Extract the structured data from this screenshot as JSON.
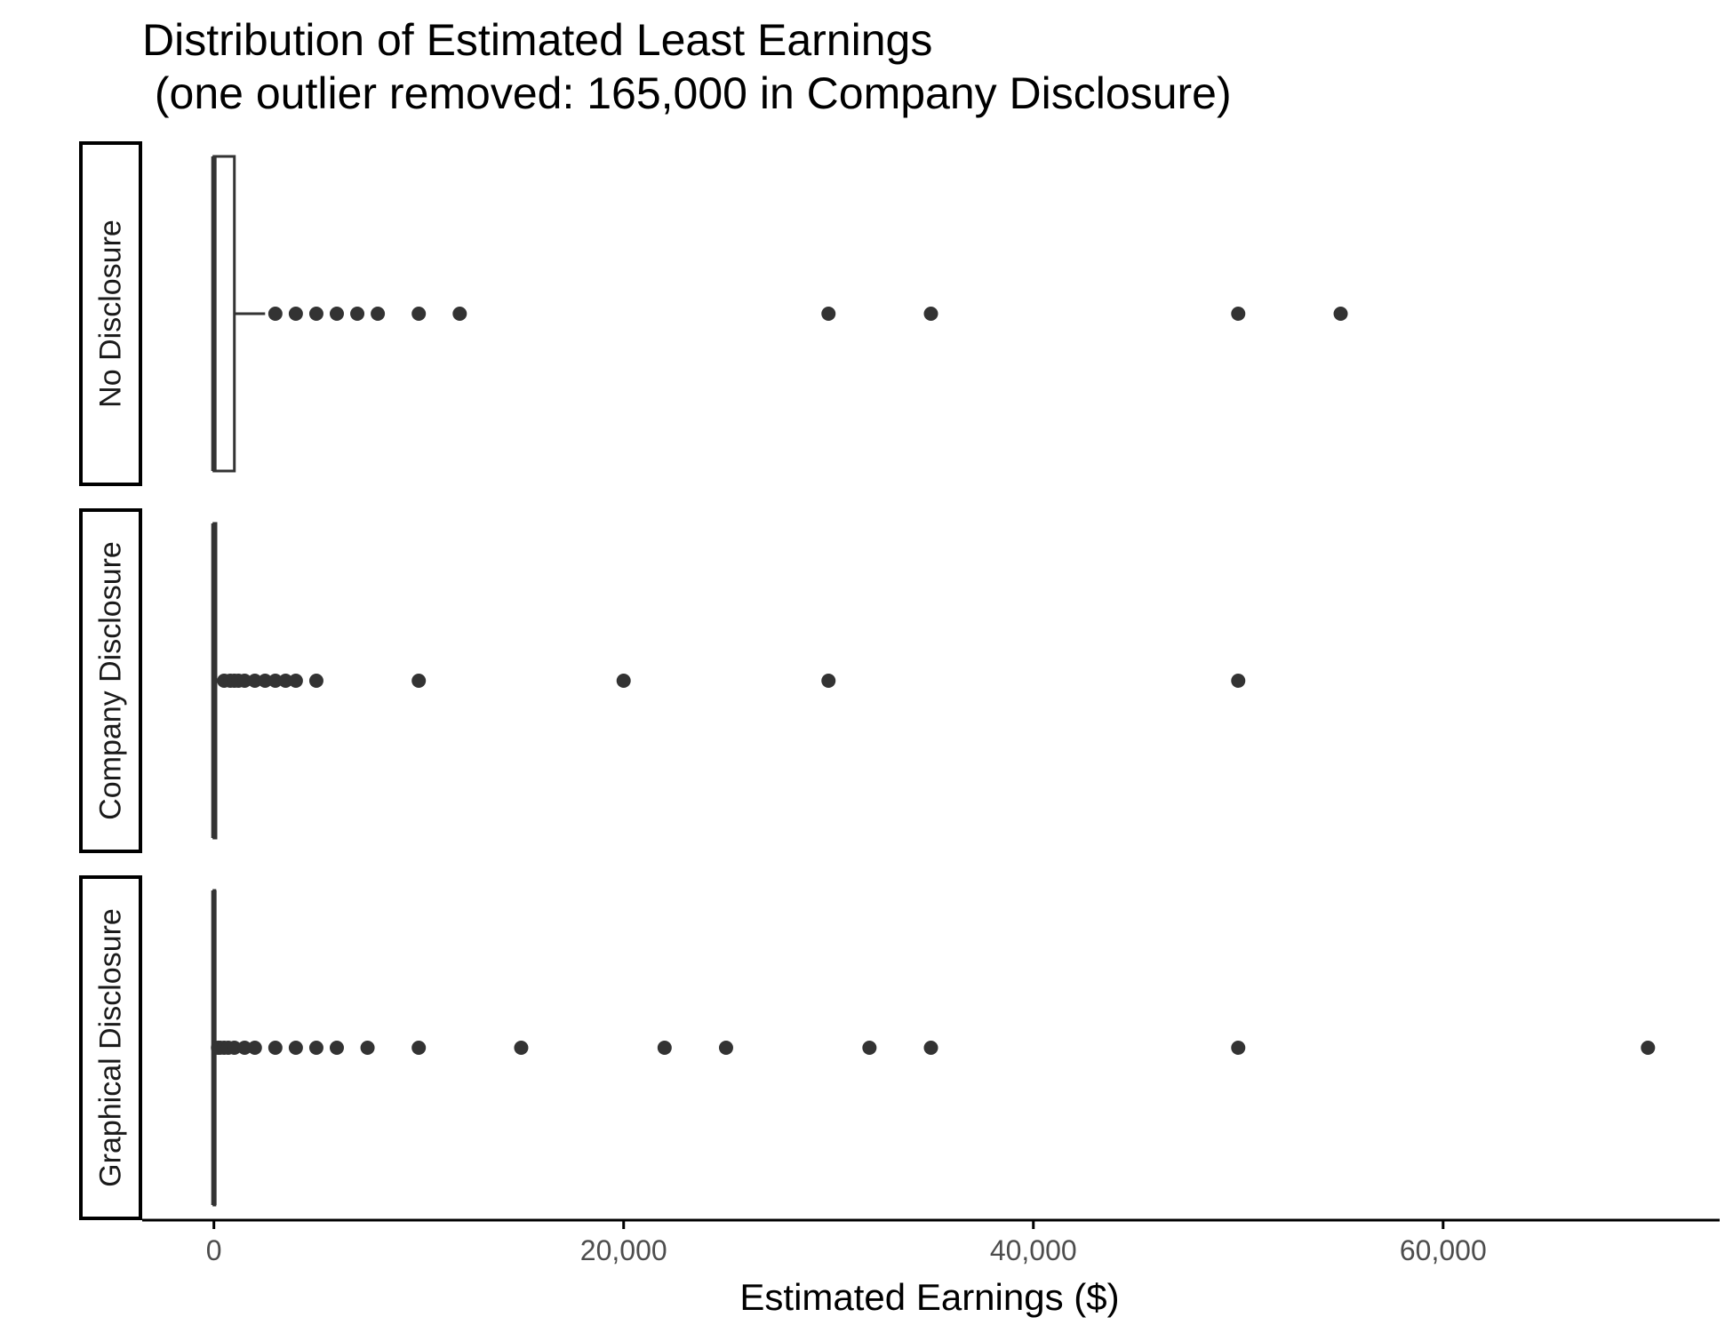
{
  "chart_data": {
    "type": "boxplot",
    "title": "Distribution of Estimated Least Earnings",
    "subtitle": " (one outlier removed: 165,000 in Company Disclosure)",
    "xlabel": "Estimated Earnings ($)",
    "ylabel": "",
    "xlim": [
      -3500,
      73500
    ],
    "x_ticks": [
      0,
      20000,
      40000,
      60000
    ],
    "x_tick_labels": [
      "0",
      "20,000",
      "40,000",
      "60,000"
    ],
    "grid": false,
    "legend": "none",
    "colors": {
      "box_fill": "#ffffff",
      "box_line": "#333333",
      "points": "#333333",
      "axis": "#000000",
      "strip_border": "#000000"
    },
    "panels": [
      {
        "label": "No Disclosure",
        "box": {
          "min": 0,
          "q1": 0,
          "median": 0,
          "q3": 1000,
          "whisker_high": 2500
        },
        "outliers": [
          3000,
          4000,
          5000,
          6000,
          7000,
          8000,
          10000,
          12000,
          30000,
          35000,
          50000,
          55000
        ]
      },
      {
        "label": "Company Disclosure",
        "box": {
          "min": 0,
          "q1": 0,
          "median": 0,
          "q3": 100,
          "whisker_high": 200
        },
        "outliers": [
          500,
          800,
          1000,
          1200,
          1500,
          2000,
          2500,
          3000,
          3500,
          4000,
          5000,
          10000,
          20000,
          30000,
          50000
        ]
      },
      {
        "label": "Graphical Disclosure",
        "box": {
          "min": 0,
          "q1": 0,
          "median": 0,
          "q3": 50,
          "whisker_high": 100
        },
        "outliers": [
          200,
          300,
          500,
          700,
          1000,
          1500,
          2000,
          3000,
          4000,
          5000,
          6000,
          7500,
          10000,
          15000,
          22000,
          25000,
          32000,
          35000,
          50000,
          70000
        ]
      }
    ]
  }
}
